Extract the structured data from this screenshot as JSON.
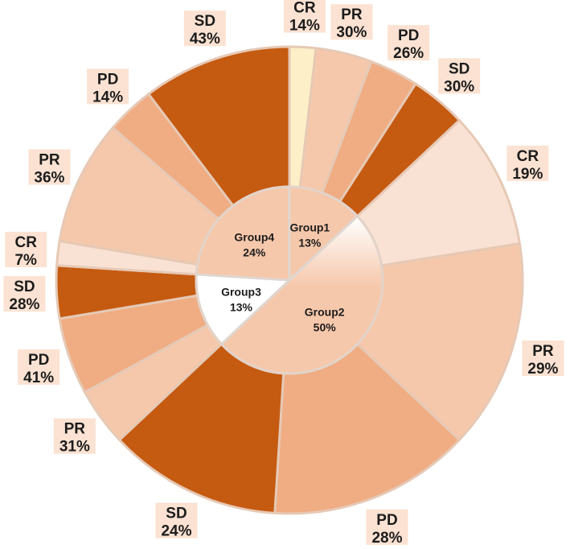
{
  "chart_data": {
    "type": "pie",
    "variant": "sunburst",
    "groups": [
      {
        "name": "Group1",
        "percent": "13%",
        "value": 13,
        "children": [
          {
            "name": "CR",
            "percent": "14%",
            "value": 14,
            "color": "#fdf0c8"
          },
          {
            "name": "PR",
            "percent": "30%",
            "value": 30,
            "color": "#f6c8ab"
          },
          {
            "name": "PD",
            "percent": "26%",
            "value": 26,
            "color": "#f0ac82"
          },
          {
            "name": "SD",
            "percent": "30%",
            "value": 30,
            "color": "#c55a11"
          }
        ]
      },
      {
        "name": "Group2",
        "percent": "50%",
        "value": 50,
        "children": [
          {
            "name": "CR",
            "percent": "19%",
            "value": 19,
            "color": "#f9e2d4"
          },
          {
            "name": "PR",
            "percent": "29%",
            "value": 29,
            "color": "#f6c8ab"
          },
          {
            "name": "PD",
            "percent": "28%",
            "value": 28,
            "color": "#f0ac82"
          },
          {
            "name": "SD",
            "percent": "24%",
            "value": 24,
            "color": "#c55a11"
          }
        ]
      },
      {
        "name": "Group3",
        "percent": "13%",
        "value": 13,
        "children": [
          {
            "name": "PR",
            "percent": "31%",
            "value": 31,
            "color": "#f6c8ab"
          },
          {
            "name": "PD",
            "percent": "41%",
            "value": 41,
            "color": "#f0ac82"
          },
          {
            "name": "SD",
            "percent": "28%",
            "value": 28,
            "color": "#c55a11"
          }
        ]
      },
      {
        "name": "Group4",
        "percent": "24%",
        "value": 24,
        "children": [
          {
            "name": "CR",
            "percent": "7%",
            "value": 7,
            "color": "#f9e2d4"
          },
          {
            "name": "PR",
            "percent": "36%",
            "value": 36,
            "color": "#f6c8ab"
          },
          {
            "name": "PD",
            "percent": "14%",
            "value": 14,
            "color": "#f0ac82"
          },
          {
            "name": "SD",
            "percent": "43%",
            "value": 43,
            "color": "#c55a11"
          }
        ]
      }
    ],
    "inner_colors": [
      "#f6c8ab",
      "#f6c8ab",
      "#ffffff",
      "#f6c8ab"
    ]
  }
}
